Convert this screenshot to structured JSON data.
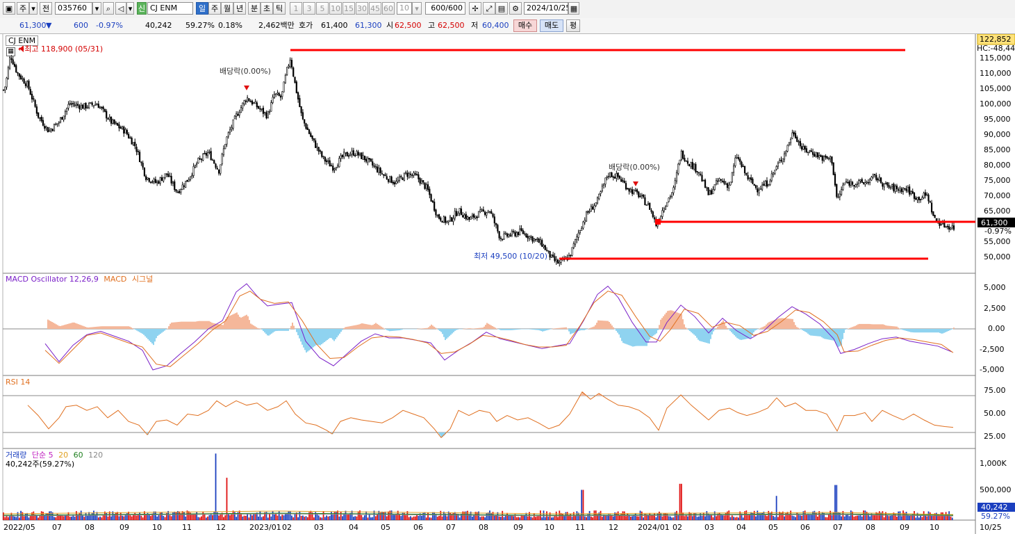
{
  "toolbar": {
    "market_label": "주",
    "prev_label": "전",
    "code": "035760",
    "badge_sin": "신",
    "name": "CJ ENM",
    "periods": [
      "일",
      "주",
      "월",
      "년",
      "분",
      "초",
      "틱"
    ],
    "active_period": "일",
    "intervals": [
      "1",
      "3",
      "5",
      "10",
      "15",
      "30",
      "45",
      "60"
    ],
    "interval_value": "10",
    "count": "600",
    "count_total": "/600",
    "date": "2024/10/25"
  },
  "quote": {
    "price": "61,300",
    "direction": "▼",
    "change": "600",
    "change_pct": "-0.97%",
    "volume": "40,242",
    "volume_ratio": "59.27%",
    "turnover": "0.18%",
    "amount": "2,462백만",
    "hoga_label": "호가",
    "ask": "61,400",
    "bid": "61,300",
    "open_label": "시",
    "open": "62,500",
    "high_label": "고",
    "high": "62,500",
    "low_label": "저",
    "low": "60,400",
    "buy_label": "매수",
    "sell_label": "매도",
    "eval_label": "평"
  },
  "price_panel": {
    "title": "CJ ENM",
    "high_note": "←최고 118,900 (05/31)",
    "low_note": "최저 49,500 (10/20)",
    "dividend_note_1": "배당락(0.00%)",
    "dividend_note_2": "배당락(0.00%)",
    "current_price_tag": "61,300",
    "current_change_tag": "-0.97%",
    "top_price_tag": "122,852",
    "hc_tag": "HC:-48,44",
    "y_ticks": [
      "115,000",
      "110,000",
      "105,000",
      "100,000",
      "95,000",
      "90,000",
      "85,000",
      "80,000",
      "75,000",
      "70,000",
      "65,000",
      "55,000",
      "50,000"
    ]
  },
  "macd_panel": {
    "title_1": "MACD Oscillator 12,26,9",
    "title_2": "MACD",
    "title_3": "시그널",
    "y_ticks": [
      "5,000",
      "2,500",
      "0.00",
      "-2,500",
      "-5,000"
    ]
  },
  "rsi_panel": {
    "title": "RSI 14",
    "y_ticks": [
      "75.00",
      "50.00",
      "25.00"
    ]
  },
  "volume_panel": {
    "title_1": "거래량",
    "title_2": "단순 5",
    "title_3": "20",
    "title_4": "60",
    "title_5": "120",
    "sub": "40,242주(59.27%)",
    "y_ticks": [
      "1,000K",
      "500,000"
    ],
    "current_tag": "40,242",
    "current_pct_tag": "59.27%"
  },
  "x_axis": [
    "2022/05",
    "07",
    "08",
    "09",
    "10",
    "11",
    "12",
    "2023/01",
    "02",
    "03",
    "04",
    "05",
    "06",
    "07",
    "08",
    "09",
    "10",
    "11",
    "12",
    "2024/01",
    "02",
    "03",
    "04",
    "05",
    "06",
    "07",
    "08",
    "09",
    "10",
    "10/25"
  ],
  "colors": {
    "up": "#e01010",
    "down": "#1b3fbf",
    "line": "#ff0000",
    "macd": "#7a20c8",
    "signal": "#e07020",
    "osc_pos": "#f5b79a",
    "osc_neg": "#8fd3f0",
    "rsi": "#e07020",
    "ma5": "#c020c0",
    "ma20": "#e0a020",
    "ma60": "#208020",
    "ma120": "#888888"
  },
  "chart_data": {
    "type": "candlestick",
    "symbol": "CJ ENM",
    "high": {
      "value": 118900,
      "date": "05/31"
    },
    "low": {
      "value": 49500,
      "date": "10/20"
    },
    "last": 61300,
    "price_path": [
      [
        0,
        104000
      ],
      [
        8,
        108000
      ],
      [
        15,
        118000
      ],
      [
        25,
        112000
      ],
      [
        40,
        108000
      ],
      [
        55,
        98000
      ],
      [
        70,
        93000
      ],
      [
        85,
        96000
      ],
      [
        100,
        102000
      ],
      [
        120,
        101000
      ],
      [
        140,
        102000
      ],
      [
        160,
        96000
      ],
      [
        180,
        93000
      ],
      [
        195,
        88000
      ],
      [
        210,
        78000
      ],
      [
        225,
        76000
      ],
      [
        240,
        79000
      ],
      [
        255,
        73000
      ],
      [
        270,
        77000
      ],
      [
        285,
        83000
      ],
      [
        300,
        86000
      ],
      [
        315,
        80000
      ],
      [
        325,
        90000
      ],
      [
        340,
        98000
      ],
      [
        355,
        104000
      ],
      [
        370,
        101000
      ],
      [
        385,
        98000
      ],
      [
        395,
        105000
      ],
      [
        405,
        104000
      ],
      [
        412,
        112000
      ],
      [
        418,
        117000
      ],
      [
        425,
        108000
      ],
      [
        435,
        97000
      ],
      [
        450,
        90000
      ],
      [
        465,
        84000
      ],
      [
        480,
        81000
      ],
      [
        495,
        85000
      ],
      [
        510,
        86000
      ],
      [
        525,
        84000
      ],
      [
        540,
        81000
      ],
      [
        555,
        78000
      ],
      [
        570,
        76000
      ],
      [
        585,
        79000
      ],
      [
        600,
        78000
      ],
      [
        615,
        74000
      ],
      [
        630,
        65000
      ],
      [
        645,
        63000
      ],
      [
        660,
        67000
      ],
      [
        675,
        64000
      ],
      [
        690,
        66000
      ],
      [
        705,
        67000
      ],
      [
        720,
        58000
      ],
      [
        735,
        59000
      ],
      [
        750,
        60000
      ],
      [
        765,
        58000
      ],
      [
        780,
        56000
      ],
      [
        795,
        51000
      ],
      [
        805,
        49500
      ],
      [
        820,
        52000
      ],
      [
        835,
        61000
      ],
      [
        845,
        66000
      ],
      [
        860,
        70000
      ],
      [
        875,
        79000
      ],
      [
        890,
        78000
      ],
      [
        905,
        74000
      ],
      [
        920,
        72000
      ],
      [
        935,
        68000
      ],
      [
        945,
        62000
      ],
      [
        955,
        68000
      ],
      [
        970,
        74000
      ],
      [
        980,
        86000
      ],
      [
        990,
        83000
      ],
      [
        1005,
        80000
      ],
      [
        1020,
        72000
      ],
      [
        1035,
        77000
      ],
      [
        1050,
        75000
      ],
      [
        1060,
        85000
      ],
      [
        1075,
        78000
      ],
      [
        1090,
        74000
      ],
      [
        1105,
        76000
      ],
      [
        1120,
        82000
      ],
      [
        1130,
        86000
      ],
      [
        1142,
        93000
      ],
      [
        1155,
        87000
      ],
      [
        1170,
        86000
      ],
      [
        1185,
        84000
      ],
      [
        1197,
        84000
      ],
      [
        1205,
        70000
      ],
      [
        1215,
        76000
      ],
      [
        1230,
        76000
      ],
      [
        1245,
        76000
      ],
      [
        1260,
        78000
      ],
      [
        1275,
        75000
      ],
      [
        1290,
        74000
      ],
      [
        1305,
        74000
      ],
      [
        1320,
        71000
      ],
      [
        1335,
        72000
      ],
      [
        1345,
        64000
      ],
      [
        1360,
        62000
      ],
      [
        1375,
        61300
      ]
    ],
    "macd_points": [
      [
        65,
        -1800
      ],
      [
        85,
        -4000
      ],
      [
        105,
        -2000
      ],
      [
        125,
        -700
      ],
      [
        145,
        -300
      ],
      [
        165,
        -900
      ],
      [
        185,
        -1500
      ],
      [
        205,
        -2600
      ],
      [
        220,
        -5000
      ],
      [
        240,
        -4500
      ],
      [
        260,
        -3000
      ],
      [
        280,
        -1600
      ],
      [
        300,
        0
      ],
      [
        320,
        1000
      ],
      [
        340,
        4500
      ],
      [
        355,
        5500
      ],
      [
        370,
        4000
      ],
      [
        385,
        2800
      ],
      [
        400,
        3000
      ],
      [
        420,
        3200
      ],
      [
        440,
        -1500
      ],
      [
        460,
        -3500
      ],
      [
        480,
        -4500
      ],
      [
        500,
        -3000
      ],
      [
        520,
        -1500
      ],
      [
        540,
        -600
      ],
      [
        560,
        -1100
      ],
      [
        580,
        -1100
      ],
      [
        600,
        -1400
      ],
      [
        620,
        -1700
      ],
      [
        640,
        -3800
      ],
      [
        660,
        -2600
      ],
      [
        680,
        -1600
      ],
      [
        700,
        -400
      ],
      [
        720,
        -1200
      ],
      [
        740,
        -1600
      ],
      [
        760,
        -2000
      ],
      [
        780,
        -2400
      ],
      [
        800,
        -2100
      ],
      [
        820,
        -1800
      ],
      [
        840,
        1000
      ],
      [
        860,
        4200
      ],
      [
        875,
        5200
      ],
      [
        890,
        3800
      ],
      [
        910,
        800
      ],
      [
        930,
        -1600
      ],
      [
        945,
        -1600
      ],
      [
        960,
        800
      ],
      [
        980,
        2900
      ],
      [
        1000,
        1500
      ],
      [
        1020,
        -500
      ],
      [
        1040,
        1300
      ],
      [
        1060,
        -200
      ],
      [
        1080,
        -1200
      ],
      [
        1100,
        -200
      ],
      [
        1120,
        1400
      ],
      [
        1140,
        2700
      ],
      [
        1160,
        1800
      ],
      [
        1180,
        600
      ],
      [
        1200,
        -1200
      ],
      [
        1210,
        -3000
      ],
      [
        1230,
        -2500
      ],
      [
        1250,
        -1800
      ],
      [
        1270,
        -1200
      ],
      [
        1290,
        -1000
      ],
      [
        1310,
        -1500
      ],
      [
        1330,
        -1800
      ],
      [
        1350,
        -2100
      ],
      [
        1370,
        -2800
      ]
    ],
    "signal_points": [
      [
        65,
        -2600
      ],
      [
        85,
        -4200
      ],
      [
        105,
        -2500
      ],
      [
        125,
        -800
      ],
      [
        145,
        -500
      ],
      [
        165,
        -1100
      ],
      [
        185,
        -1700
      ],
      [
        205,
        -2200
      ],
      [
        225,
        -4300
      ],
      [
        245,
        -4600
      ],
      [
        265,
        -3200
      ],
      [
        285,
        -1800
      ],
      [
        305,
        -200
      ],
      [
        325,
        1000
      ],
      [
        345,
        4000
      ],
      [
        360,
        4600
      ],
      [
        375,
        3600
      ],
      [
        395,
        3100
      ],
      [
        415,
        3300
      ],
      [
        435,
        1000
      ],
      [
        455,
        -1800
      ],
      [
        475,
        -3600
      ],
      [
        495,
        -3500
      ],
      [
        515,
        -2200
      ],
      [
        535,
        -1100
      ],
      [
        555,
        -900
      ],
      [
        575,
        -1000
      ],
      [
        595,
        -1300
      ],
      [
        615,
        -1700
      ],
      [
        635,
        -3000
      ],
      [
        655,
        -2800
      ],
      [
        675,
        -1900
      ],
      [
        695,
        -800
      ],
      [
        715,
        -1000
      ],
      [
        735,
        -1400
      ],
      [
        755,
        -1900
      ],
      [
        775,
        -2200
      ],
      [
        795,
        -2200
      ],
      [
        815,
        -2000
      ],
      [
        835,
        400
      ],
      [
        855,
        3200
      ],
      [
        875,
        4600
      ],
      [
        895,
        4100
      ],
      [
        915,
        1500
      ],
      [
        935,
        -900
      ],
      [
        950,
        -1500
      ],
      [
        965,
        -100
      ],
      [
        985,
        2400
      ],
      [
        1005,
        1900
      ],
      [
        1025,
        200
      ],
      [
        1045,
        800
      ],
      [
        1065,
        400
      ],
      [
        1085,
        -800
      ],
      [
        1105,
        -300
      ],
      [
        1125,
        900
      ],
      [
        1145,
        2300
      ],
      [
        1165,
        2000
      ],
      [
        1185,
        900
      ],
      [
        1205,
        -700
      ],
      [
        1215,
        -2800
      ],
      [
        1235,
        -2700
      ],
      [
        1255,
        -2000
      ],
      [
        1275,
        -1400
      ],
      [
        1295,
        -1100
      ],
      [
        1315,
        -1300
      ],
      [
        1335,
        -1600
      ],
      [
        1355,
        -1900
      ],
      [
        1372,
        -2900
      ]
    ],
    "rsi_points": [
      [
        40,
        62
      ],
      [
        55,
        48
      ],
      [
        70,
        30
      ],
      [
        85,
        45
      ],
      [
        95,
        60
      ],
      [
        110,
        62
      ],
      [
        125,
        55
      ],
      [
        140,
        60
      ],
      [
        155,
        45
      ],
      [
        170,
        55
      ],
      [
        185,
        40
      ],
      [
        200,
        35
      ],
      [
        212,
        22
      ],
      [
        225,
        40
      ],
      [
        240,
        42
      ],
      [
        255,
        35
      ],
      [
        270,
        50
      ],
      [
        285,
        48
      ],
      [
        300,
        55
      ],
      [
        312,
        68
      ],
      [
        325,
        60
      ],
      [
        340,
        68
      ],
      [
        355,
        62
      ],
      [
        370,
        65
      ],
      [
        385,
        55
      ],
      [
        400,
        60
      ],
      [
        412,
        68
      ],
      [
        425,
        50
      ],
      [
        440,
        38
      ],
      [
        455,
        35
      ],
      [
        470,
        28
      ],
      [
        478,
        23
      ],
      [
        490,
        40
      ],
      [
        505,
        45
      ],
      [
        520,
        42
      ],
      [
        535,
        40
      ],
      [
        550,
        38
      ],
      [
        565,
        45
      ],
      [
        580,
        55
      ],
      [
        595,
        50
      ],
      [
        610,
        45
      ],
      [
        625,
        30
      ],
      [
        635,
        18
      ],
      [
        648,
        30
      ],
      [
        660,
        55
      ],
      [
        675,
        48
      ],
      [
        690,
        55
      ],
      [
        705,
        52
      ],
      [
        715,
        40
      ],
      [
        730,
        48
      ],
      [
        745,
        42
      ],
      [
        760,
        45
      ],
      [
        775,
        38
      ],
      [
        790,
        30
      ],
      [
        805,
        35
      ],
      [
        820,
        50
      ],
      [
        838,
        80
      ],
      [
        850,
        70
      ],
      [
        862,
        78
      ],
      [
        875,
        70
      ],
      [
        890,
        62
      ],
      [
        905,
        60
      ],
      [
        920,
        55
      ],
      [
        935,
        45
      ],
      [
        948,
        28
      ],
      [
        960,
        58
      ],
      [
        980,
        76
      ],
      [
        995,
        62
      ],
      [
        1010,
        50
      ],
      [
        1020,
        42
      ],
      [
        1035,
        55
      ],
      [
        1050,
        58
      ],
      [
        1062,
        52
      ],
      [
        1075,
        48
      ],
      [
        1090,
        52
      ],
      [
        1105,
        58
      ],
      [
        1118,
        72
      ],
      [
        1130,
        60
      ],
      [
        1145,
        65
      ],
      [
        1160,
        55
      ],
      [
        1175,
        55
      ],
      [
        1190,
        50
      ],
      [
        1205,
        27
      ],
      [
        1215,
        48
      ],
      [
        1230,
        48
      ],
      [
        1245,
        52
      ],
      [
        1255,
        40
      ],
      [
        1270,
        55
      ],
      [
        1285,
        48
      ],
      [
        1300,
        42
      ],
      [
        1315,
        50
      ],
      [
        1330,
        42
      ],
      [
        1345,
        35
      ],
      [
        1360,
        33
      ],
      [
        1372,
        32
      ]
    ],
    "volume_spikes": [
      [
        310,
        1100000
      ],
      [
        327,
        700000
      ],
      [
        838,
        500000
      ],
      [
        980,
        600000
      ],
      [
        1118,
        400000
      ],
      [
        1203,
        580000
      ],
      [
        1372,
        40242
      ]
    ]
  }
}
